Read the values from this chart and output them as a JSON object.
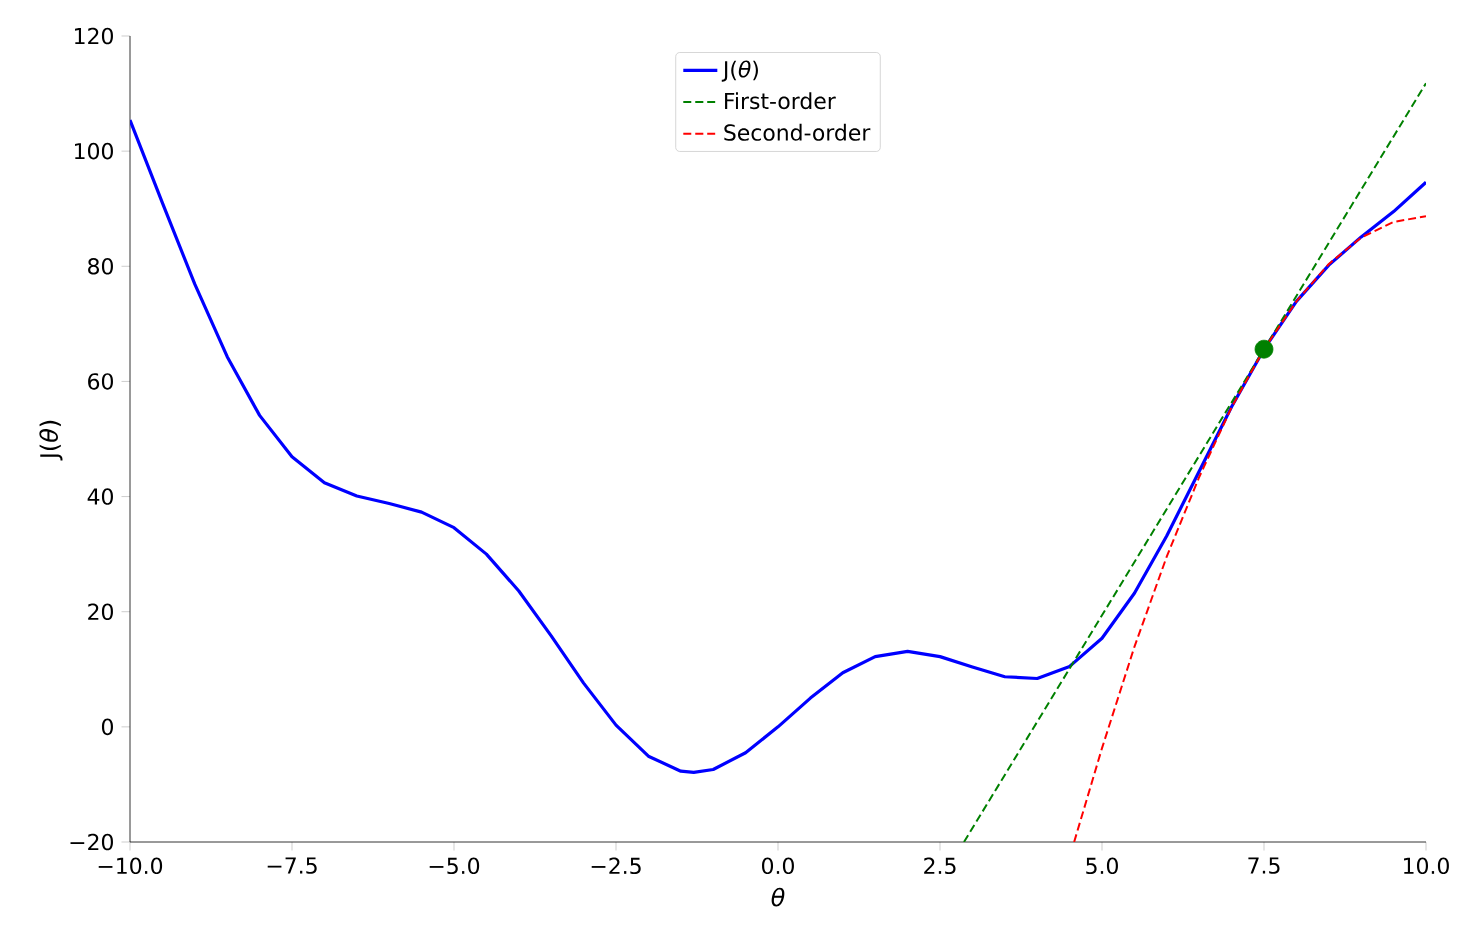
{
  "chart_data": {
    "type": "line",
    "xlabel": "θ",
    "ylabel": "J(*θ*)",
    "xlim": [
      -10,
      10
    ],
    "ylim": [
      -20,
      120
    ],
    "xticks": [
      {
        "value": -10,
        "label": "−10.0"
      },
      {
        "value": -7.5,
        "label": "−7.5"
      },
      {
        "value": -5,
        "label": "−5.0"
      },
      {
        "value": -2.5,
        "label": "−2.5"
      },
      {
        "value": 0,
        "label": "0.0"
      },
      {
        "value": 2.5,
        "label": "2.5"
      },
      {
        "value": 5,
        "label": "5.0"
      },
      {
        "value": 7.5,
        "label": "7.5"
      },
      {
        "value": 10,
        "label": "10.0"
      }
    ],
    "yticks": [
      {
        "value": -20,
        "label": "−20"
      },
      0,
      20,
      40,
      60,
      80,
      100,
      120
    ],
    "grid": false,
    "legend": "top",
    "series": [
      {
        "name": "J(*θ*)",
        "color": "#0000ff",
        "line_style": "solid",
        "x": [
          -10,
          -9.5,
          -9,
          -8.5,
          -8,
          -7.5,
          -7,
          -6.5,
          -6,
          -5.5,
          -5,
          -4.5,
          -4,
          -3.5,
          -3,
          -2.5,
          -2,
          -1.5,
          -1.3,
          -1,
          -0.5,
          0,
          0.5,
          1,
          1.5,
          2,
          2.5,
          3,
          3.5,
          4,
          4.5,
          5,
          5.5,
          6,
          6.5,
          7,
          7.5,
          8,
          8.5,
          9,
          9.5,
          10
        ],
        "values": [
          105.4,
          91.0,
          76.9,
          64.3,
          54.1,
          46.9,
          42.4,
          40.1,
          38.8,
          37.3,
          34.6,
          30.0,
          23.6,
          15.8,
          7.6,
          0.3,
          -5.1,
          -7.7,
          -7.9,
          -7.4,
          -4.5,
          0,
          5.0,
          9.4,
          12.2,
          13.1,
          12.2,
          10.4,
          8.7,
          8.4,
          10.5,
          15.4,
          23.2,
          33.2,
          44.4,
          55.6,
          65.6,
          73.9,
          80.2,
          85.1,
          89.5,
          94.6
        ]
      },
      {
        "name": "First-order",
        "color": "#008000",
        "line_style": "dashed",
        "x": [
          2.87,
          10
        ],
        "values": [
          -20,
          111.8
        ]
      },
      {
        "name": "Second-order",
        "color": "#ff0000",
        "line_style": "dashed",
        "x": [
          4.57,
          5,
          5.5,
          6,
          6.5,
          7,
          7.5,
          8,
          8.5,
          9,
          9.5,
          10
        ],
        "values": [
          -20,
          -3.7,
          13.9,
          29.6,
          43.4,
          55.5,
          65.6,
          73.9,
          80.4,
          85.0,
          87.7,
          88.7
        ]
      },
      {
        "type": "scatter",
        "marker": "circle",
        "color": "#008000",
        "x": [
          7.5
        ],
        "values": [
          65.6
        ]
      }
    ]
  }
}
